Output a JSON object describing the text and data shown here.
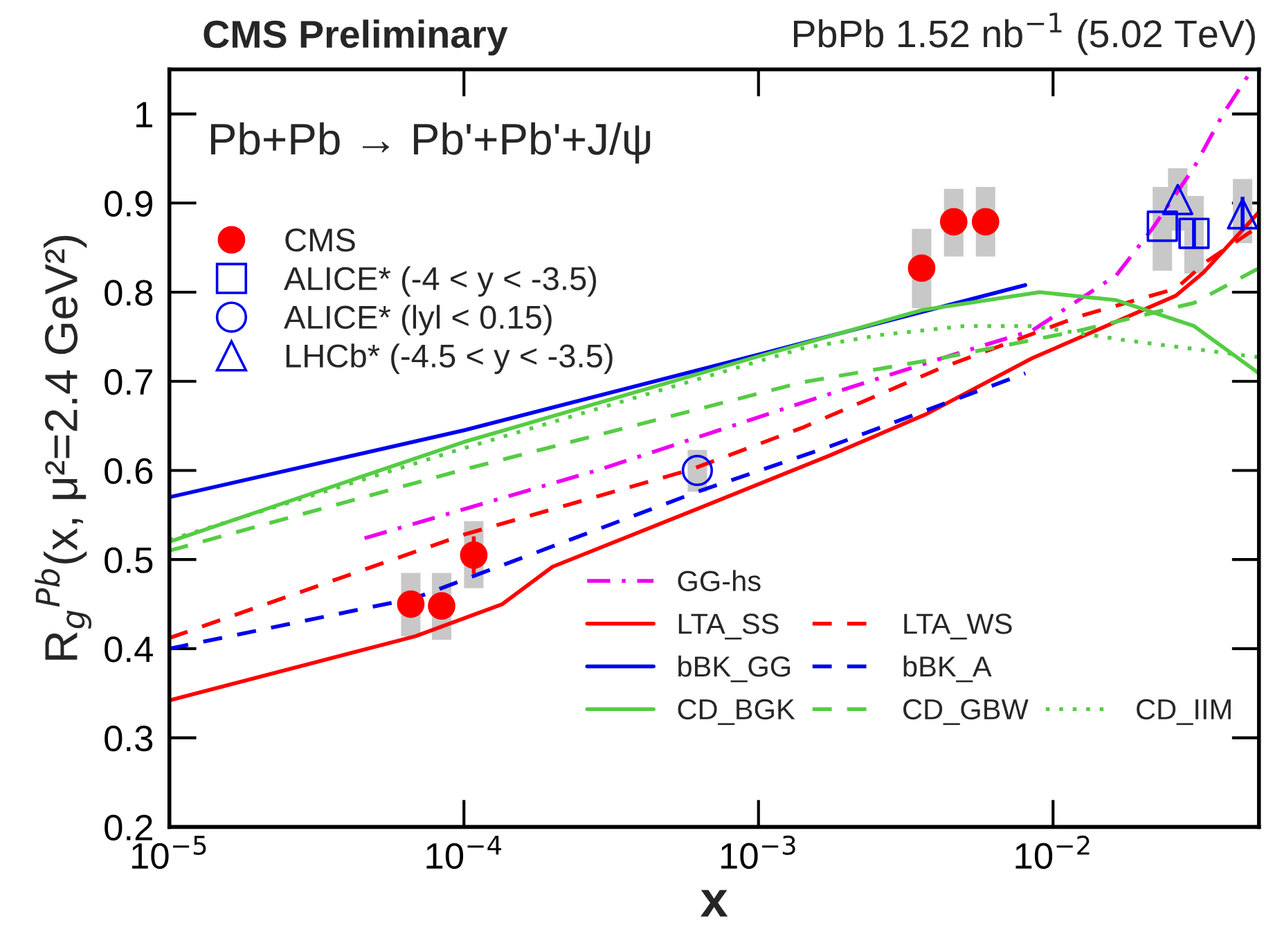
{
  "chart_data": {
    "type": "line",
    "title": "CMS Preliminary",
    "subtitle": "PbPb 1.52 nb$^{−1}$ (5.02 TeV)",
    "xlabel": "x",
    "ylabel": "R$_{g}$$^{Pb}$(x, μ²=2.4 GeV²)",
    "annotations": [
      "Pb+Pb → Pb'+Pb'+J/ψ"
    ],
    "log": "x",
    "xlim": [
      1e-05,
      0.05
    ],
    "ylim": [
      0.2,
      1.05
    ],
    "xticks": [
      {
        "value": 1e-05,
        "label": "10$^{−5}$"
      },
      {
        "value": 0.0001,
        "label": "10$^{−4}$"
      },
      {
        "value": 0.001,
        "label": "10$^{−3}$"
      },
      {
        "value": 0.01,
        "label": "10$^{−2}$"
      }
    ],
    "yticks": [
      0.2,
      0.3,
      0.4,
      0.5,
      0.6,
      0.7,
      0.8,
      0.9,
      1
    ],
    "grid": false,
    "legend": "bottom right",
    "series": [
      {
        "type": "bar",
        "color": "#c8c8c8",
        "x": [
          6.6e-05,
          8.4e-05,
          0.000108,
          0.00062,
          0.00358,
          0.0046,
          0.0059,
          0.0235,
          0.0265,
          0.0301,
          0.044
        ],
        "base": [
          0.414,
          0.41,
          0.468,
          0.576,
          0.782,
          0.84,
          0.84,
          0.824,
          0.869,
          0.821,
          0.855
        ],
        "values": [
          0.071,
          0.075,
          0.075,
          0.047,
          0.089,
          0.076,
          0.078,
          0.094,
          0.07,
          0.087,
          0.072
        ]
      },
      {
        "name": "GG-hs",
        "color": "#ee00ee",
        "line_style": "dashdot",
        "x": [
          4.6e-05,
          0.000289,
          0.00141,
          0.0042,
          0.0085,
          0.0164,
          0.0217,
          0.0301,
          0.0378,
          0.0474
        ],
        "values": [
          0.524,
          0.601,
          0.676,
          0.726,
          0.757,
          0.819,
          0.871,
          0.94,
          1.0,
          1.05
        ]
      },
      {
        "name": "LTA_SS",
        "color": "#ff0000",
        "line_style": "solid",
        "x": [
          1e-05,
          6.85e-05,
          0.000135,
          0.0002,
          0.00059,
          0.00175,
          0.0037,
          0.0085,
          0.0261,
          0.0324,
          0.05
        ],
        "values": [
          0.342,
          0.414,
          0.45,
          0.492,
          0.554,
          0.617,
          0.663,
          0.726,
          0.796,
          0.822,
          0.89
        ]
      },
      {
        "name": "LTA_WS",
        "color": "#ff0000",
        "line_style": "dashed",
        "x": [
          1e-05,
          0.0001,
          0.00059,
          0.00141,
          0.00417,
          0.0123,
          0.0261,
          0.0334,
          0.05
        ],
        "values": [
          0.412,
          0.528,
          0.601,
          0.648,
          0.715,
          0.773,
          0.804,
          0.835,
          0.874
        ]
      },
      {
        "name": "bBK_GG",
        "color": "#0000ee",
        "line_style": "solid",
        "x": [
          1e-05,
          0.0001,
          0.001,
          0.00805
        ],
        "values": [
          0.57,
          0.645,
          0.73,
          0.808
        ]
      },
      {
        "name": "bBK_A",
        "color": "#0000ee",
        "line_style": "dashed",
        "x": [
          1e-05,
          6.85e-05,
          0.00062,
          0.00175,
          0.00805
        ],
        "values": [
          0.4,
          0.457,
          0.576,
          0.627,
          0.709
        ]
      },
      {
        "name": "CD_BGK",
        "color": "#55cc44",
        "line_style": "solid",
        "x": [
          1e-05,
          0.0001,
          0.001,
          0.0036,
          0.009,
          0.0164,
          0.0301,
          0.05
        ],
        "values": [
          0.52,
          0.632,
          0.728,
          0.78,
          0.8,
          0.791,
          0.762,
          0.709
        ]
      },
      {
        "name": "CD_GBW",
        "color": "#55cc44",
        "line_style": "dashed",
        "x": [
          1e-05,
          0.0001,
          0.00141,
          0.00417,
          0.0123,
          0.0301,
          0.05
        ],
        "values": [
          0.51,
          0.601,
          0.699,
          0.726,
          0.757,
          0.788,
          0.827
        ]
      },
      {
        "name": "CD_IIM",
        "color": "#55cc44",
        "line_style": "dotted",
        "x": [
          1e-05,
          0.0001,
          0.00141,
          0.0026,
          0.00498,
          0.0085,
          0.0177,
          0.05
        ],
        "values": [
          0.522,
          0.625,
          0.737,
          0.752,
          0.762,
          0.762,
          0.746,
          0.727
        ]
      },
      {
        "type": "scatter",
        "name": "CMS",
        "color": "#ff0000",
        "marker": "circle",
        "x": [
          6.6e-05,
          8.4e-05,
          0.000108,
          0.00358,
          0.0046,
          0.0059
        ],
        "values": [
          0.45,
          0.448,
          0.505,
          0.827,
          0.879,
          0.879
        ],
        "errors": [
          0.015,
          0.015,
          0.021,
          0.012,
          0.008,
          0.008
        ]
      },
      {
        "type": "scatter",
        "name": "ALICE* (-4 < y < -3.5)",
        "color": "#0000ee",
        "marker": "square",
        "x": [
          0.0235,
          0.0301
        ],
        "values": [
          0.874,
          0.866
        ],
        "errors": [
          null,
          0.015
        ]
      },
      {
        "type": "scatter",
        "name": "ALICE* (lyl < 0.15)",
        "color": "#0000ee",
        "marker": "circle",
        "x": [
          0.00062
        ],
        "values": [
          0.6
        ],
        "errors": [
          null
        ]
      },
      {
        "type": "scatter",
        "name": "LHCb* (-4.5 < y < -3.5)",
        "color": "#0000ee",
        "marker": "triangle",
        "x": [
          0.0265,
          0.044
        ],
        "values": [
          0.904,
          0.888
        ],
        "errors": [
          null,
          0.019
        ]
      }
    ]
  }
}
